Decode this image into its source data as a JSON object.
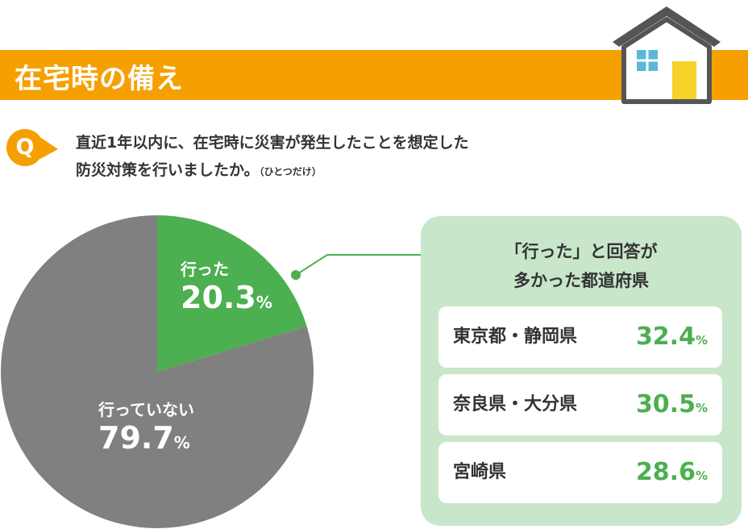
{
  "header": {
    "title": "在宅時の備え"
  },
  "question": {
    "badge": "Q",
    "line1": "直近1年以内に、在宅時に災害が発生したことを想定した",
    "line2": "防災対策を行いましたか。",
    "note": "（ひとつだけ）"
  },
  "colors": {
    "header_bg": "#f5a000",
    "yes_slice": "#4caf50",
    "no_slice": "#808080",
    "panel_bg": "#c8e6c9",
    "value_text": "#4caf50"
  },
  "chart_data": {
    "type": "pie",
    "slices": [
      {
        "label": "行った",
        "value": 20.3,
        "unit": "%",
        "color": "#4caf50"
      },
      {
        "label": "行っていない",
        "value": 79.7,
        "unit": "%",
        "color": "#808080"
      }
    ]
  },
  "pie_labels": {
    "yes": {
      "label": "行った",
      "value": "20.3",
      "unit": "%"
    },
    "no": {
      "label": "行っていない",
      "value": "79.7",
      "unit": "%"
    }
  },
  "panel": {
    "heading_line1": "「行った」と回答が",
    "heading_line2": "多かった都道府県",
    "items": [
      {
        "pref": "東京都・静岡県",
        "value": "32.4",
        "unit": "%"
      },
      {
        "pref": "奈良県・大分県",
        "value": "30.5",
        "unit": "%"
      },
      {
        "pref": "宮崎県",
        "value": "28.6",
        "unit": "%"
      }
    ]
  }
}
